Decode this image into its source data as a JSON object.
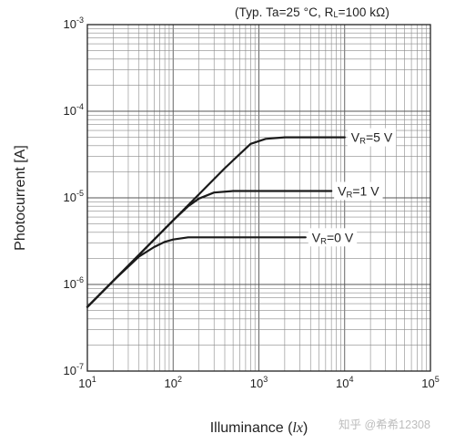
{
  "chart_data": {
    "type": "line",
    "title": "",
    "annotation": {
      "prefix": "(Typ. Ta=25 °C, R",
      "sub": "L",
      "suffix": "=100 kΩ)"
    },
    "xlabel": "Illuminance",
    "xunit": "lx",
    "ylabel": "Photocurrent [A]",
    "xscale": "log",
    "yscale": "log",
    "xlim": [
      10,
      100000
    ],
    "ylim": [
      1e-07,
      0.001
    ],
    "grid": true,
    "legend": "inline labels at right end of each curve",
    "x_ticks": [
      {
        "value": 10,
        "base": "10",
        "exp": "1"
      },
      {
        "value": 100,
        "base": "10",
        "exp": "2"
      },
      {
        "value": 1000,
        "base": "10",
        "exp": "3"
      },
      {
        "value": 10000,
        "base": "10",
        "exp": "4"
      },
      {
        "value": 100000,
        "base": "10",
        "exp": "5"
      }
    ],
    "y_ticks": [
      {
        "value": 1e-07,
        "base": "10",
        "exp": "-7"
      },
      {
        "value": 1e-06,
        "base": "10",
        "exp": "-6"
      },
      {
        "value": 1e-05,
        "base": "10",
        "exp": "-5"
      },
      {
        "value": 0.0001,
        "base": "10",
        "exp": "-4"
      },
      {
        "value": 0.001,
        "base": "10",
        "exp": "-3"
      }
    ],
    "series": [
      {
        "label_main": "V",
        "label_sub": "R",
        "label_value": "=5 V",
        "x": [
          10,
          20,
          50,
          100,
          200,
          400,
          800,
          1200,
          2000,
          5000,
          10000
        ],
        "y": [
          5.5e-07,
          1.1e-06,
          2.75e-06,
          5.5e-06,
          1.1e-05,
          2.2e-05,
          4.2e-05,
          4.8e-05,
          5e-05,
          5e-05,
          5e-05
        ]
      },
      {
        "label_main": "V",
        "label_sub": "R",
        "label_value": "=1 V",
        "x": [
          10,
          20,
          50,
          100,
          150,
          200,
          300,
          500,
          1000,
          3000,
          7000
        ],
        "y": [
          5.5e-07,
          1.1e-06,
          2.75e-06,
          5.5e-06,
          8e-06,
          9.8e-06,
          1.15e-05,
          1.2e-05,
          1.2e-05,
          1.2e-05,
          1.2e-05
        ]
      },
      {
        "label_main": "V",
        "label_sub": "R",
        "label_value": "=0 V",
        "x": [
          10,
          20,
          40,
          60,
          80,
          100,
          150,
          300,
          1000,
          3500
        ],
        "y": [
          5.5e-07,
          1.1e-06,
          2.1e-06,
          2.7e-06,
          3.1e-06,
          3.3e-06,
          3.5e-06,
          3.5e-06,
          3.5e-06,
          3.5e-06
        ]
      }
    ]
  },
  "watermark": "知乎 @希希12308"
}
